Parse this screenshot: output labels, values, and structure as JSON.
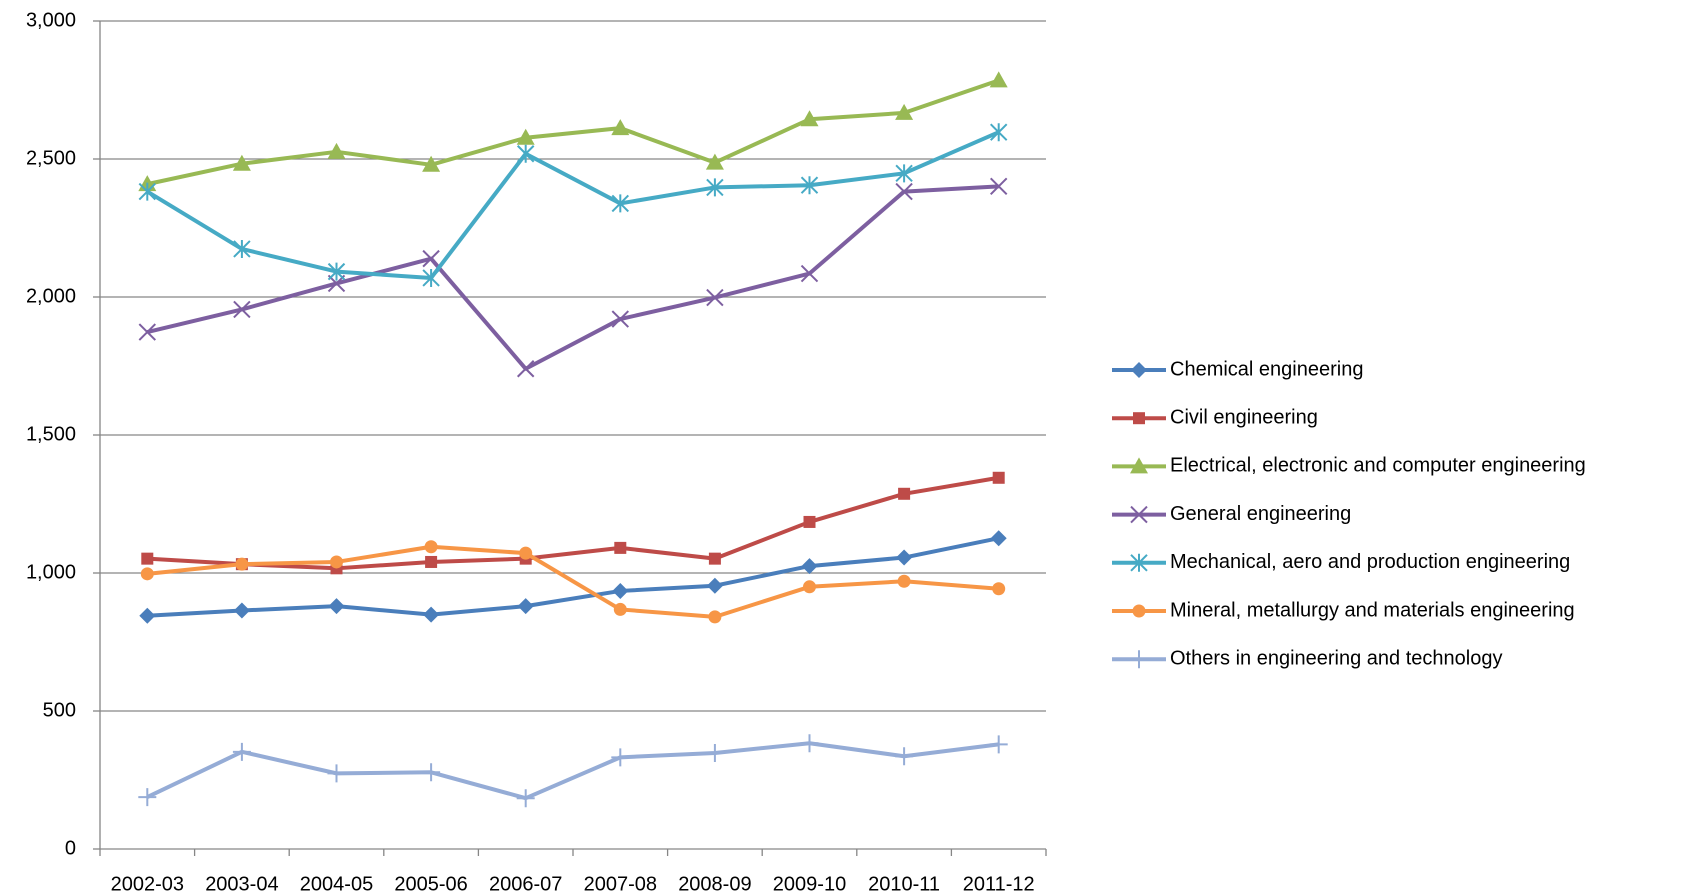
{
  "chart_data": {
    "type": "line",
    "categories": [
      "2002-03",
      "2003-04",
      "2004-05",
      "2005-06",
      "2006-07",
      "2007-08",
      "2008-09",
      "2009-10",
      "2010-11",
      "2011-12"
    ],
    "series": [
      {
        "name": "Chemical engineering",
        "color": "#4a7ebb",
        "marker": "diamond",
        "values": [
          845,
          864,
          880,
          849,
          880,
          935,
          954,
          1025,
          1056,
          1126
        ]
      },
      {
        "name": "Civil engineering",
        "color": "#be4b48",
        "marker": "square",
        "values": [
          1052,
          1032,
          1017,
          1040,
          1052,
          1091,
          1052,
          1185,
          1287,
          1345
        ]
      },
      {
        "name": "Electrical, electronic and computer engineering",
        "color": "#98b954",
        "marker": "triangle",
        "values": [
          2409,
          2483,
          2526,
          2479,
          2577,
          2612,
          2487,
          2644,
          2667,
          2785
        ]
      },
      {
        "name": "General engineering",
        "color": "#7d5fa0",
        "marker": "x",
        "values": [
          1873,
          1955,
          2049,
          2139,
          1740,
          1920,
          1998,
          2085,
          2382,
          2401
        ]
      },
      {
        "name": "Mechanical, aero and production engineering",
        "color": "#46aac5",
        "marker": "asterisk",
        "values": [
          2382,
          2174,
          2092,
          2069,
          2519,
          2339,
          2397,
          2405,
          2448,
          2597
        ]
      },
      {
        "name": "Mineral, metallurgy and materials engineering",
        "color": "#f79646",
        "marker": "circle",
        "values": [
          997,
          1032,
          1040,
          1095,
          1072,
          868,
          841,
          950,
          970,
          943
        ]
      },
      {
        "name": "Others in engineering and technology",
        "color": "#95acd6",
        "marker": "plus",
        "values": [
          188,
          352,
          274,
          278,
          184,
          332,
          348,
          383,
          336,
          379
        ]
      }
    ],
    "ylim": [
      0,
      3000
    ],
    "yticks": [
      0,
      500,
      {
        "value": 1000,
        "label": "1,000"
      },
      {
        "value": 1500,
        "label": "1,500"
      },
      {
        "value": 2000,
        "label": "2,000"
      },
      {
        "value": 2500,
        "label": "2,500"
      },
      {
        "value": 3000,
        "label": "3,000"
      }
    ],
    "grid": true,
    "legend": "right"
  }
}
